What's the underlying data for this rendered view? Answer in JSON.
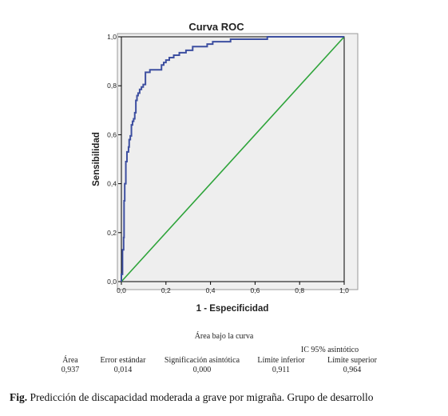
{
  "chart_data": {
    "type": "line",
    "title": "Curva ROC",
    "xlabel": "1 - Especificidad",
    "ylabel": "Sensibilidad",
    "xlim": [
      0,
      1
    ],
    "ylim": [
      0,
      1
    ],
    "x_ticks": [
      "0,0",
      "0,2",
      "0,4",
      "0,6",
      "0,8",
      "1,0"
    ],
    "y_ticks": [
      "0,0",
      "0,2",
      "0,4",
      "0,6",
      "0,8",
      "1,0"
    ],
    "grid": false,
    "series": [
      {
        "color": "#3d4fa0",
        "points": [
          [
            0.0,
            0.0
          ],
          [
            0.0,
            0.03
          ],
          [
            0.005,
            0.03
          ],
          [
            0.005,
            0.13
          ],
          [
            0.01,
            0.13
          ],
          [
            0.01,
            0.18
          ],
          [
            0.012,
            0.18
          ],
          [
            0.012,
            0.33
          ],
          [
            0.015,
            0.33
          ],
          [
            0.015,
            0.4
          ],
          [
            0.02,
            0.4
          ],
          [
            0.02,
            0.49
          ],
          [
            0.025,
            0.49
          ],
          [
            0.025,
            0.53
          ],
          [
            0.032,
            0.53
          ],
          [
            0.032,
            0.55
          ],
          [
            0.035,
            0.55
          ],
          [
            0.035,
            0.58
          ],
          [
            0.04,
            0.58
          ],
          [
            0.04,
            0.595
          ],
          [
            0.045,
            0.595
          ],
          [
            0.045,
            0.64
          ],
          [
            0.05,
            0.64
          ],
          [
            0.05,
            0.655
          ],
          [
            0.055,
            0.655
          ],
          [
            0.055,
            0.665
          ],
          [
            0.06,
            0.665
          ],
          [
            0.06,
            0.69
          ],
          [
            0.065,
            0.69
          ],
          [
            0.065,
            0.74
          ],
          [
            0.07,
            0.74
          ],
          [
            0.07,
            0.76
          ],
          [
            0.075,
            0.76
          ],
          [
            0.075,
            0.77
          ],
          [
            0.082,
            0.77
          ],
          [
            0.082,
            0.785
          ],
          [
            0.09,
            0.785
          ],
          [
            0.09,
            0.795
          ],
          [
            0.098,
            0.795
          ],
          [
            0.098,
            0.805
          ],
          [
            0.108,
            0.805
          ],
          [
            0.108,
            0.855
          ],
          [
            0.128,
            0.855
          ],
          [
            0.128,
            0.865
          ],
          [
            0.18,
            0.865
          ],
          [
            0.18,
            0.885
          ],
          [
            0.19,
            0.885
          ],
          [
            0.19,
            0.895
          ],
          [
            0.2,
            0.895
          ],
          [
            0.2,
            0.905
          ],
          [
            0.215,
            0.905
          ],
          [
            0.215,
            0.915
          ],
          [
            0.235,
            0.915
          ],
          [
            0.235,
            0.925
          ],
          [
            0.26,
            0.925
          ],
          [
            0.26,
            0.935
          ],
          [
            0.29,
            0.935
          ],
          [
            0.29,
            0.945
          ],
          [
            0.32,
            0.945
          ],
          [
            0.32,
            0.96
          ],
          [
            0.385,
            0.96
          ],
          [
            0.385,
            0.97
          ],
          [
            0.41,
            0.97
          ],
          [
            0.41,
            0.98
          ],
          [
            0.49,
            0.98
          ],
          [
            0.49,
            0.99
          ],
          [
            0.655,
            0.99
          ],
          [
            0.655,
            1.0
          ],
          [
            1.0,
            1.0
          ]
        ]
      },
      {
        "color": "#2ea43a",
        "points": [
          [
            0.0,
            0.0
          ],
          [
            1.0,
            1.0
          ]
        ]
      }
    ]
  },
  "table": {
    "title": "Área bajo la curva",
    "ci_header": "IC 95% asintótico",
    "columns": [
      {
        "header": "Área",
        "value": "0,937"
      },
      {
        "header": "Error estándar",
        "value": "0,014"
      },
      {
        "header": "Significación asintótica",
        "value": "0,000"
      },
      {
        "header": "Límite inferior",
        "value": "0,911"
      },
      {
        "header": "Límite superior",
        "value": "0,964"
      }
    ]
  },
  "caption": {
    "label": "Fig.",
    "text": " Predicción de discapacidad moderada a grave por migraña. Grupo de desarrollo"
  }
}
